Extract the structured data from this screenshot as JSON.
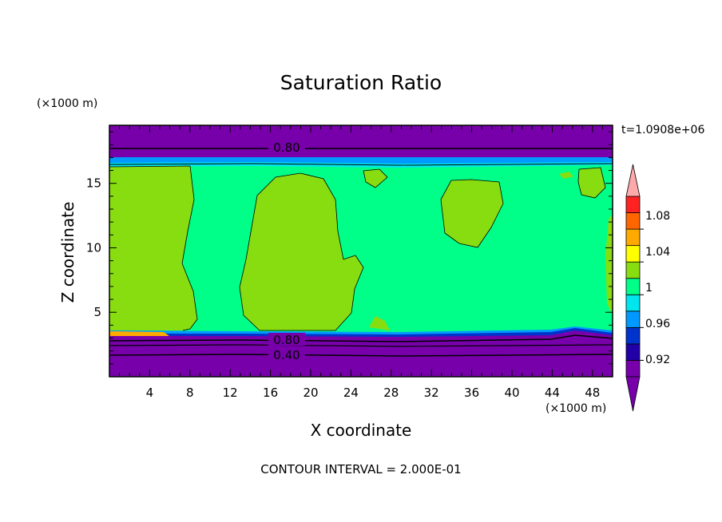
{
  "chart_data": {
    "type": "heatmap",
    "title": "Saturation Ratio",
    "xlabel": "X coordinate",
    "ylabel": "Z coordinate",
    "x_unit": "(×1000 m)",
    "y_unit": "(×1000 m)",
    "time_label": "t=1.0908e+06",
    "footer": "CONTOUR INTERVAL = 2.000E-01",
    "xlim": [
      0,
      50
    ],
    "ylim": [
      0,
      19.5
    ],
    "x_ticks": [
      4,
      8,
      12,
      16,
      20,
      24,
      28,
      32,
      36,
      40,
      44,
      48
    ],
    "y_ticks": [
      5,
      10,
      15
    ],
    "grid": false,
    "legend": "colorbar-right",
    "colorbar_labels": [
      "1.08",
      "1.04",
      "1",
      "0.96",
      "0.92"
    ],
    "contour_labels": [
      "0.80",
      "0.80",
      "0.40"
    ],
    "colors": {
      "below_0.92": "#7700aa",
      "0.92-0.94": "#2200a8",
      "0.94-0.96": "#0033cc",
      "0.96-0.98": "#0099ff",
      "0.98-1.00": "#00e5ee",
      "1.00-1.02": "#00ff88",
      "1.02-1.04": "#88dd11",
      "1.04-1.06": "#ffff00",
      "1.06-1.08": "#ffaa00",
      "1.08-1.10": "#ff6600",
      "1.10-1.12": "#ff2222",
      "above": "#ffaaaa"
    }
  }
}
